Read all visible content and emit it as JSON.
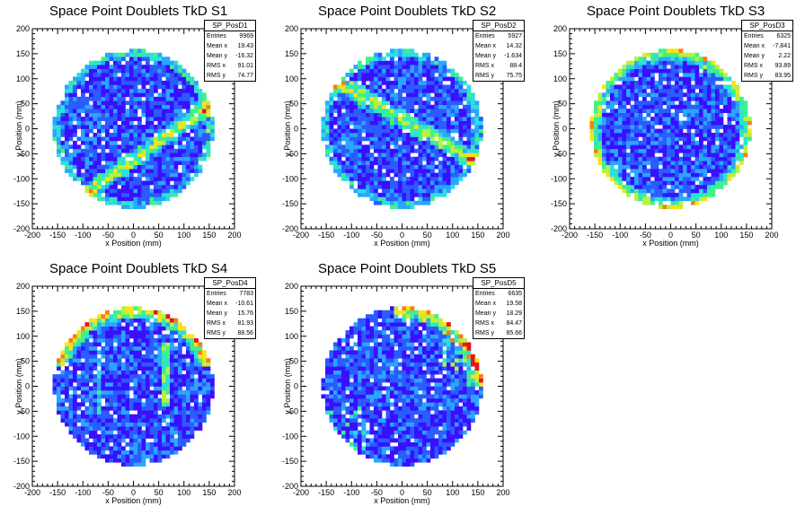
{
  "chart_data": [
    {
      "type": "heatmap",
      "title": "Space Point Doublets TkD S1",
      "xlabel": "x Position (mm)",
      "ylabel": "y Position (mm)",
      "xlim": [
        -200,
        200
      ],
      "ylim": [
        -200,
        200
      ],
      "x_ticks": [
        "-200",
        "-150",
        "-100",
        "-50",
        "0",
        "50",
        "100",
        "150",
        "200"
      ],
      "y_ticks": [
        "200",
        "150",
        "100",
        "50",
        "0",
        "-50",
        "-100",
        "-150",
        "-200"
      ],
      "colormap": [
        "#3a0fff",
        "#2a5cff",
        "#2aa6ff",
        "#2de0d8",
        "#3ef28a",
        "#b8f23a",
        "#ffe01a",
        "#ff7a12",
        "#e8141a"
      ],
      "pattern": {
        "kind": "band",
        "slope": 0.72,
        "offset": -62,
        "level": 0.42
      },
      "stats": {
        "name": "SP_PosD1",
        "rows": [
          {
            "label": "Entries",
            "value": "9969"
          },
          {
            "label": "Mean x",
            "value": "19.43"
          },
          {
            "label": "Mean y",
            "value": "-16.32"
          },
          {
            "label": "RMS x",
            "value": "91.01"
          },
          {
            "label": "RMS y",
            "value": "74.77"
          }
        ]
      }
    },
    {
      "type": "heatmap",
      "title": "Space Point Doublets TkD S2",
      "xlabel": "x Position (mm)",
      "ylabel": "y Position (mm)",
      "xlim": [
        -200,
        200
      ],
      "ylim": [
        -200,
        200
      ],
      "x_ticks": [
        "-200",
        "-150",
        "-100",
        "-50",
        "0",
        "50",
        "100",
        "150",
        "200"
      ],
      "y_ticks": [
        "200",
        "150",
        "100",
        "50",
        "0",
        "-50",
        "-100",
        "-150",
        "-200"
      ],
      "colormap": [
        "#3a0fff",
        "#2a5cff",
        "#2aa6ff",
        "#2de0d8",
        "#3ef28a",
        "#b8f23a",
        "#ffe01a",
        "#ff7a12",
        "#e8141a"
      ],
      "pattern": {
        "kind": "band",
        "slope": -0.58,
        "offset": 20,
        "level": 0.4
      },
      "stats": {
        "name": "SP_PosD2",
        "rows": [
          {
            "label": "Entries",
            "value": "5927"
          },
          {
            "label": "Mean x",
            "value": "14.32"
          },
          {
            "label": "Mean y",
            "value": "-1.634"
          },
          {
            "label": "RMS x",
            "value": "88.4"
          },
          {
            "label": "RMS y",
            "value": "75.75"
          }
        ]
      }
    },
    {
      "type": "heatmap",
      "title": "Space Point Doublets TkD S3",
      "xlabel": "x Position (mm)",
      "ylabel": "y Position (mm)",
      "xlim": [
        -200,
        200
      ],
      "ylim": [
        -200,
        200
      ],
      "x_ticks": [
        "-200",
        "-150",
        "-100",
        "-50",
        "0",
        "50",
        "100",
        "150",
        "200"
      ],
      "y_ticks": [
        "200",
        "150",
        "100",
        "50",
        "0",
        "-50",
        "-100",
        "-150",
        "-200"
      ],
      "colormap": [
        "#3a0fff",
        "#2a5cff",
        "#2aa6ff",
        "#2de0d8",
        "#3ef28a",
        "#b8f23a",
        "#ffe01a",
        "#ff7a12",
        "#e8141a"
      ],
      "pattern": {
        "kind": "ring",
        "level": 0.45
      },
      "stats": {
        "name": "SP_PosD3",
        "rows": [
          {
            "label": "Entries",
            "value": "6325"
          },
          {
            "label": "Mean x",
            "value": "-7.841"
          },
          {
            "label": "Mean y",
            "value": "2.22"
          },
          {
            "label": "RMS x",
            "value": "93.89"
          },
          {
            "label": "RMS y",
            "value": "83.95"
          }
        ]
      }
    },
    {
      "type": "heatmap",
      "title": "Space Point Doublets TkD S4",
      "xlabel": "x Position (mm)",
      "ylabel": "y Position (mm)",
      "xlim": [
        -200,
        200
      ],
      "ylim": [
        -200,
        200
      ],
      "x_ticks": [
        "-200",
        "-150",
        "-100",
        "-50",
        "0",
        "50",
        "100",
        "150",
        "200"
      ],
      "y_ticks": [
        "200",
        "150",
        "100",
        "50",
        "0",
        "-50",
        "-100",
        "-150",
        "-200"
      ],
      "colormap": [
        "#3a0fff",
        "#2a5cff",
        "#2aa6ff",
        "#2de0d8",
        "#3ef28a",
        "#b8f23a",
        "#ffe01a",
        "#ff7a12",
        "#e8141a"
      ],
      "pattern": {
        "kind": "top-ring",
        "level": 0.5
      },
      "stats": {
        "name": "SP_PosD4",
        "rows": [
          {
            "label": "Entries",
            "value": "7783"
          },
          {
            "label": "Mean x",
            "value": "-10.61"
          },
          {
            "label": "Mean y",
            "value": "15.76"
          },
          {
            "label": "RMS x",
            "value": "81.93"
          },
          {
            "label": "RMS y",
            "value": "88.56"
          }
        ]
      }
    },
    {
      "type": "heatmap",
      "title": "Space Point Doublets TkD S5",
      "xlabel": "x Position (mm)",
      "ylabel": "y Position (mm)",
      "xlim": [
        -200,
        200
      ],
      "ylim": [
        -200,
        200
      ],
      "x_ticks": [
        "-200",
        "-150",
        "-100",
        "-50",
        "0",
        "50",
        "100",
        "150",
        "200"
      ],
      "y_ticks": [
        "200",
        "150",
        "100",
        "50",
        "0",
        "-50",
        "-100",
        "-150",
        "-200"
      ],
      "colormap": [
        "#3a0fff",
        "#2a5cff",
        "#2aa6ff",
        "#2de0d8",
        "#3ef28a",
        "#b8f23a",
        "#ffe01a",
        "#ff7a12",
        "#e8141a"
      ],
      "pattern": {
        "kind": "upper-right",
        "level": 0.5
      },
      "stats": {
        "name": "SP_PosD5",
        "rows": [
          {
            "label": "Entries",
            "value": "6635"
          },
          {
            "label": "Mean x",
            "value": "19.58"
          },
          {
            "label": "Mean y",
            "value": "18.29"
          },
          {
            "label": "RMS x",
            "value": "84.47"
          },
          {
            "label": "RMS y",
            "value": "85.66"
          }
        ]
      }
    }
  ]
}
